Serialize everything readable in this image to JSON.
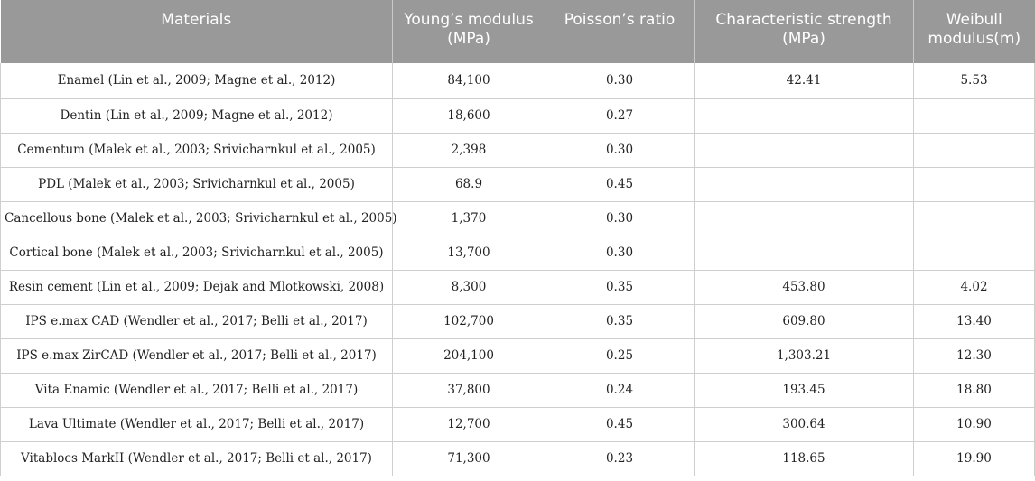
{
  "table": {
    "headers": [
      "Materials",
      "Young’s modulus (MPa)",
      "Poisson’s ratio",
      "Characteristic strength (MPa)",
      "Weibull modulus(m)"
    ],
    "rows": [
      [
        "Enamel (Lin et al., 2009; Magne et al., 2012)",
        "84,100",
        "0.30",
        "42.41",
        "5.53"
      ],
      [
        "Dentin (Lin et al., 2009; Magne et al., 2012)",
        "18,600",
        "0.27",
        "",
        ""
      ],
      [
        "Cementum (Malek et al., 2003; Srivicharnkul et al., 2005)",
        "2,398",
        "0.30",
        "",
        ""
      ],
      [
        "PDL (Malek et al., 2003; Srivicharnkul et al., 2005)",
        "68.9",
        "0.45",
        "",
        ""
      ],
      [
        "Cancellous bone (Malek et al., 2003; Srivicharnkul et al., 2005)",
        "1,370",
        "0.30",
        "",
        ""
      ],
      [
        "Cortical bone (Malek et al., 2003; Srivicharnkul et al., 2005)",
        "13,700",
        "0.30",
        "",
        ""
      ],
      [
        "Resin cement (Lin et al., 2009; Dejak and Mlotkowski, 2008)",
        "8,300",
        "0.35",
        "453.80",
        "4.02"
      ],
      [
        "IPS e.max CAD (Wendler et al., 2017; Belli et al., 2017)",
        "102,700",
        "0.35",
        "609.80",
        "13.40"
      ],
      [
        "IPS e.max ZirCAD (Wendler et al., 2017; Belli et al., 2017)",
        "204,100",
        "0.25",
        "1,303.21",
        "12.30"
      ],
      [
        "Vita Enamic (Wendler et al., 2017; Belli et al., 2017)",
        "37,800",
        "0.24",
        "193.45",
        "18.80"
      ],
      [
        "Lava Ultimate (Wendler et al., 2017; Belli et al., 2017)",
        "12,700",
        "0.45",
        "300.64",
        "10.90"
      ],
      [
        "Vitablocs MarkII (Wendler et al., 2017; Belli et al., 2017)",
        "71,300",
        "0.23",
        "118.65",
        "19.90"
      ]
    ]
  }
}
